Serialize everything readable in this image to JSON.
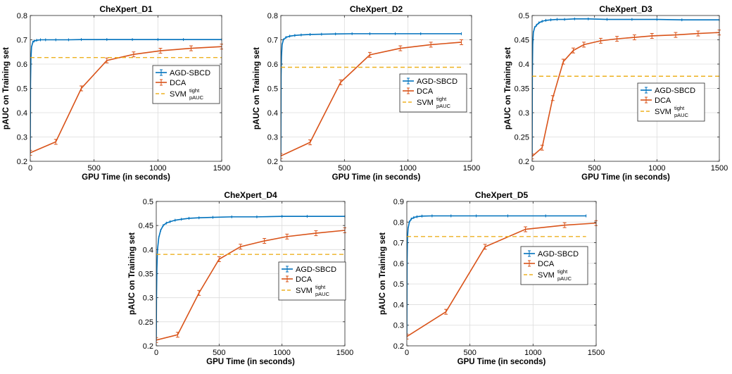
{
  "colors": {
    "agd": "#0072BD",
    "dca": "#D95319",
    "svm": "#EDB120"
  },
  "legend_labels": {
    "agd": "AGD-SBCD",
    "dca": "DCA",
    "svm_main": "SVM",
    "svm_sup": "tight",
    "svm_sub": "pAUC"
  },
  "chart_data": [
    {
      "type": "line",
      "title": "CheXpert_D1",
      "xlabel": "GPU Time (in seconds)",
      "ylabel": "pAUC on Training set",
      "xlim": [
        0,
        1500
      ],
      "ylim": [
        0.2,
        0.8
      ],
      "xticks": [
        0,
        500,
        1000,
        1500
      ],
      "yticks": [
        0.2,
        0.3,
        0.4,
        0.5,
        0.6,
        0.7,
        0.8
      ],
      "legend_position": "right",
      "grid": true,
      "series": [
        {
          "name": "AGD-SBCD",
          "style": "solid-points",
          "x": [
            0,
            2,
            5,
            10,
            20,
            30,
            50,
            80,
            120,
            200,
            300,
            400,
            600,
            800,
            1000,
            1200,
            1500
          ],
          "y": [
            0.23,
            0.52,
            0.62,
            0.67,
            0.69,
            0.695,
            0.698,
            0.7,
            0.7,
            0.7,
            0.7,
            0.701,
            0.701,
            0.701,
            0.701,
            0.701,
            0.701
          ]
        },
        {
          "name": "DCA",
          "style": "solid-errorbars",
          "x": [
            0,
            200,
            400,
            600,
            810,
            1020,
            1260,
            1500
          ],
          "y": [
            0.235,
            0.28,
            0.5,
            0.615,
            0.64,
            0.655,
            0.665,
            0.672
          ]
        },
        {
          "name": "SVM_pAUC^tight",
          "style": "dashed",
          "x": [
            0,
            1500
          ],
          "y": [
            0.627,
            0.627
          ]
        }
      ]
    },
    {
      "type": "line",
      "title": "CheXpert_D2",
      "xlabel": "GPU Time (in seconds)",
      "ylabel": "pAUC on Training set",
      "xlim": [
        0,
        1500
      ],
      "ylim": [
        0.2,
        0.8
      ],
      "xticks": [
        0,
        500,
        1000,
        1500
      ],
      "yticks": [
        0.2,
        0.3,
        0.4,
        0.5,
        0.6,
        0.7,
        0.8
      ],
      "legend_position": "right",
      "grid": true,
      "series": [
        {
          "name": "AGD-SBCD",
          "style": "solid-points",
          "x": [
            0,
            2,
            5,
            10,
            20,
            40,
            70,
            110,
            160,
            230,
            320,
            430,
            560,
            700,
            900,
            1100,
            1420
          ],
          "y": [
            0.22,
            0.55,
            0.63,
            0.68,
            0.7,
            0.71,
            0.715,
            0.718,
            0.72,
            0.722,
            0.723,
            0.724,
            0.725,
            0.725,
            0.725,
            0.725,
            0.725
          ]
        },
        {
          "name": "DCA",
          "style": "solid-errorbars",
          "x": [
            0,
            230,
            470,
            700,
            940,
            1180,
            1420
          ],
          "y": [
            0.222,
            0.278,
            0.525,
            0.638,
            0.665,
            0.68,
            0.69
          ]
        },
        {
          "name": "SVM_pAUC^tight",
          "style": "dashed",
          "x": [
            0,
            1420
          ],
          "y": [
            0.587,
            0.587
          ]
        }
      ]
    },
    {
      "type": "line",
      "title": "CheXpert_D3",
      "xlabel": "GPU Time (in seconds)",
      "ylabel": "pAUC on Training set",
      "xlim": [
        0,
        1500
      ],
      "ylim": [
        0.2,
        0.5
      ],
      "xticks": [
        0,
        500,
        1000,
        1500
      ],
      "yticks": [
        0.2,
        0.25,
        0.3,
        0.35,
        0.4,
        0.45,
        0.5
      ],
      "legend_position": "right",
      "grid": true,
      "series": [
        {
          "name": "AGD-SBCD",
          "style": "solid-points",
          "x": [
            0,
            2,
            5,
            10,
            20,
            35,
            55,
            80,
            110,
            150,
            200,
            260,
            340,
            450,
            600,
            800,
            1000,
            1200,
            1500
          ],
          "y": [
            0.21,
            0.38,
            0.44,
            0.465,
            0.475,
            0.48,
            0.485,
            0.488,
            0.49,
            0.491,
            0.492,
            0.492,
            0.493,
            0.493,
            0.492,
            0.492,
            0.492,
            0.491,
            0.491
          ]
        },
        {
          "name": "DCA",
          "style": "solid-errorbars",
          "x": [
            0,
            80,
            165,
            250,
            330,
            415,
            550,
            680,
            820,
            960,
            1150,
            1330,
            1500
          ],
          "y": [
            0.21,
            0.228,
            0.33,
            0.405,
            0.428,
            0.44,
            0.448,
            0.452,
            0.455,
            0.458,
            0.46,
            0.463,
            0.465
          ]
        },
        {
          "name": "SVM_pAUC^tight",
          "style": "dashed",
          "x": [
            0,
            1500
          ],
          "y": [
            0.375,
            0.375
          ]
        }
      ]
    },
    {
      "type": "line",
      "title": "CheXpert_D4",
      "xlabel": "GPU Time (in seconds)",
      "ylabel": "pAUC on Training set",
      "xlim": [
        0,
        1500
      ],
      "ylim": [
        0.2,
        0.5
      ],
      "xticks": [
        0,
        500,
        1000,
        1500
      ],
      "yticks": [
        0.2,
        0.25,
        0.3,
        0.35,
        0.4,
        0.45,
        0.5
      ],
      "legend_position": "right",
      "grid": true,
      "series": [
        {
          "name": "AGD-SBCD",
          "style": "solid-points",
          "x": [
            0,
            2,
            5,
            10,
            20,
            35,
            55,
            80,
            110,
            150,
            200,
            260,
            340,
            450,
            600,
            800,
            1000,
            1200,
            1500
          ],
          "y": [
            0.21,
            0.3,
            0.36,
            0.4,
            0.425,
            0.44,
            0.45,
            0.455,
            0.458,
            0.461,
            0.463,
            0.465,
            0.466,
            0.467,
            0.468,
            0.468,
            0.469,
            0.469,
            0.469
          ]
        },
        {
          "name": "DCA",
          "style": "solid-errorbars",
          "x": [
            0,
            170,
            340,
            500,
            670,
            860,
            1040,
            1270,
            1500
          ],
          "y": [
            0.212,
            0.223,
            0.31,
            0.38,
            0.406,
            0.418,
            0.427,
            0.434,
            0.44
          ]
        },
        {
          "name": "SVM_pAUC^tight",
          "style": "dashed",
          "x": [
            0,
            1500
          ],
          "y": [
            0.39,
            0.39
          ]
        }
      ]
    },
    {
      "type": "line",
      "title": "CheXpert_D5",
      "xlabel": "GPU Time (in seconds)",
      "ylabel": "pAUC on Training set",
      "xlim": [
        0,
        1500
      ],
      "ylim": [
        0.2,
        0.9
      ],
      "xticks": [
        0,
        500,
        1000,
        1500
      ],
      "yticks": [
        0.2,
        0.3,
        0.4,
        0.5,
        0.6,
        0.7,
        0.8,
        0.9
      ],
      "legend_position": "right",
      "grid": true,
      "series": [
        {
          "name": "AGD-SBCD",
          "style": "solid-points",
          "x": [
            0,
            2,
            5,
            10,
            20,
            35,
            55,
            80,
            120,
            200,
            350,
            550,
            800,
            1100,
            1420
          ],
          "y": [
            0.24,
            0.6,
            0.72,
            0.77,
            0.8,
            0.815,
            0.822,
            0.826,
            0.829,
            0.83,
            0.83,
            0.83,
            0.83,
            0.83,
            0.83
          ]
        },
        {
          "name": "DCA",
          "style": "solid-errorbars",
          "x": [
            0,
            310,
            620,
            940,
            1250,
            1500
          ],
          "y": [
            0.245,
            0.365,
            0.68,
            0.765,
            0.785,
            0.795
          ]
        },
        {
          "name": "SVM_pAUC^tight",
          "style": "dashed",
          "x": [
            0,
            1420
          ],
          "y": [
            0.73,
            0.73
          ]
        }
      ]
    }
  ]
}
